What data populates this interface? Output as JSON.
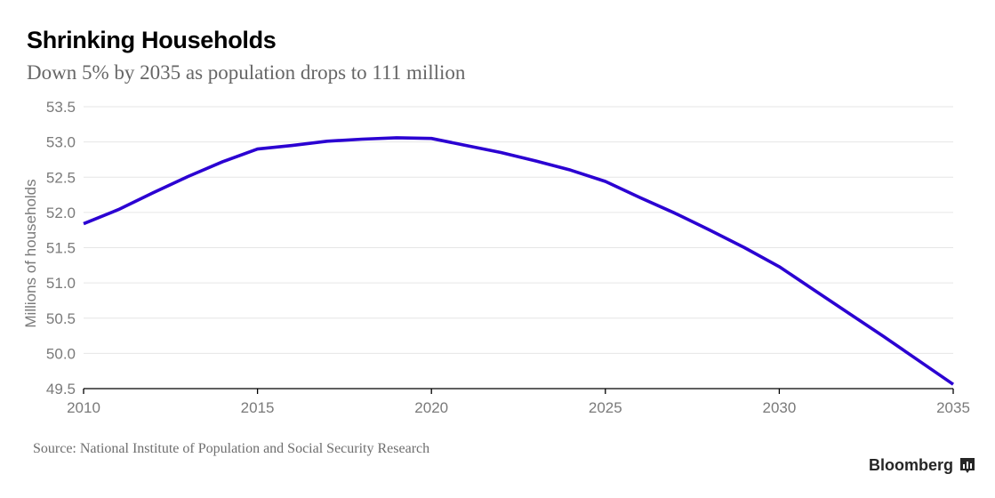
{
  "header": {
    "title": "Shrinking Households",
    "subtitle": "Down 5% by 2035 as population drops to 111 million"
  },
  "footer": {
    "source": "Source: National Institute of Population and Social Security Research",
    "brand": "Bloomberg",
    "brand_icon": "bloomberg-chart-icon"
  },
  "colors": {
    "line": "#2b00d2",
    "grid": "#e6e6e6",
    "axis": "#000000",
    "tick_text": "#7a7a7a"
  },
  "chart_data": {
    "type": "line",
    "title": "Shrinking Households",
    "subtitle": "Down 5% by 2035 as population drops to 111 million",
    "xlabel": "",
    "ylabel": "Millions of households",
    "xlim": [
      2010,
      2035
    ],
    "ylim": [
      49.5,
      53.5
    ],
    "grid": true,
    "legend": "none",
    "x_ticks": [
      2010,
      2015,
      2020,
      2025,
      2030,
      2035
    ],
    "x_tick_labels": [
      "2010",
      "2015",
      "2020",
      "2025",
      "2030",
      "2035"
    ],
    "y_ticks": [
      49.5,
      50.0,
      50.5,
      51.0,
      51.5,
      52.0,
      52.5,
      53.0,
      53.5
    ],
    "y_tick_labels": [
      "49.5",
      "50.0",
      "50.5",
      "51.0",
      "51.5",
      "52.0",
      "52.5",
      "53.0",
      "53.5"
    ],
    "x": [
      2010,
      2011,
      2012,
      2013,
      2014,
      2015,
      2016,
      2017,
      2018,
      2019,
      2020,
      2021,
      2022,
      2023,
      2024,
      2025,
      2026,
      2027,
      2028,
      2029,
      2030,
      2031,
      2032,
      2033,
      2034,
      2035
    ],
    "series": [
      {
        "name": "Households",
        "values": [
          51.84,
          52.04,
          52.28,
          52.51,
          52.72,
          52.9,
          52.95,
          53.01,
          53.04,
          53.06,
          53.05,
          52.95,
          52.85,
          52.73,
          52.6,
          52.44,
          52.21,
          51.99,
          51.75,
          51.5,
          51.23,
          50.9,
          50.57,
          50.24,
          49.9,
          49.56
        ]
      }
    ],
    "source": "Source: National Institute of Population and Social Security Research"
  }
}
